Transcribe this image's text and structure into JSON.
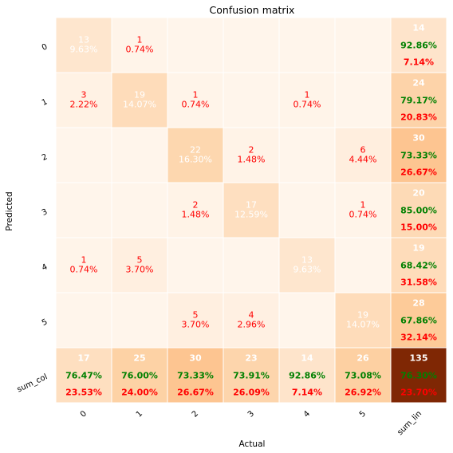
{
  "chart_data": {
    "type": "heatmap",
    "title": "Confusion matrix",
    "xlabel": "Actual",
    "ylabel": "Predicted",
    "x_tick_labels": [
      "0",
      "1",
      "2",
      "3",
      "4",
      "5",
      "sum_lin"
    ],
    "y_tick_labels": [
      "0",
      "1",
      "2",
      "3",
      "4",
      "5",
      "sum_col"
    ],
    "colormap": "Oranges",
    "colors": {
      "zero_cell": "#fff5eb",
      "total_cell": "#7f2704",
      "grid": "#ffffff",
      "count_text_dark": "#ff0000",
      "count_text_light": "#ffffff",
      "correct_pct": "#008000",
      "error_pct": "#ff0000"
    },
    "matrix": [
      [
        13,
        1,
        0,
        0,
        0,
        0
      ],
      [
        3,
        19,
        1,
        0,
        1,
        0
      ],
      [
        0,
        0,
        22,
        2,
        0,
        6
      ],
      [
        0,
        0,
        2,
        17,
        0,
        1
      ],
      [
        1,
        5,
        0,
        0,
        13,
        0
      ],
      [
        0,
        0,
        5,
        4,
        0,
        19
      ]
    ],
    "matrix_pct": [
      [
        "9.63%",
        "0.74%",
        "",
        "",
        "",
        ""
      ],
      [
        "2.22%",
        "14.07%",
        "0.74%",
        "",
        "0.74%",
        ""
      ],
      [
        "",
        "",
        "16.30%",
        "1.48%",
        "",
        "4.44%"
      ],
      [
        "",
        "",
        "1.48%",
        "12.59%",
        "",
        "0.74%"
      ],
      [
        "0.74%",
        "3.70%",
        "",
        "",
        "9.63%",
        ""
      ],
      [
        "",
        "",
        "3.70%",
        "2.96%",
        "",
        "14.07%"
      ]
    ],
    "row_totals": [
      {
        "total": 14,
        "correct": "92.86%",
        "error": "7.14%"
      },
      {
        "total": 24,
        "correct": "79.17%",
        "error": "20.83%"
      },
      {
        "total": 30,
        "correct": "73.33%",
        "error": "26.67%"
      },
      {
        "total": 20,
        "correct": "85.00%",
        "error": "15.00%"
      },
      {
        "total": 19,
        "correct": "68.42%",
        "error": "31.58%"
      },
      {
        "total": 28,
        "correct": "67.86%",
        "error": "32.14%"
      }
    ],
    "col_totals": [
      {
        "total": 17,
        "correct": "76.47%",
        "error": "23.53%"
      },
      {
        "total": 25,
        "correct": "76.00%",
        "error": "24.00%"
      },
      {
        "total": 30,
        "correct": "73.33%",
        "error": "26.67%"
      },
      {
        "total": 23,
        "correct": "73.91%",
        "error": "26.09%"
      },
      {
        "total": 14,
        "correct": "92.86%",
        "error": "7.14%"
      },
      {
        "total": 26,
        "correct": "73.08%",
        "error": "26.92%"
      }
    ],
    "grand_total": {
      "total": 135,
      "correct": "76.30%",
      "error": "23.70%"
    },
    "grid": true,
    "legend": "none"
  }
}
